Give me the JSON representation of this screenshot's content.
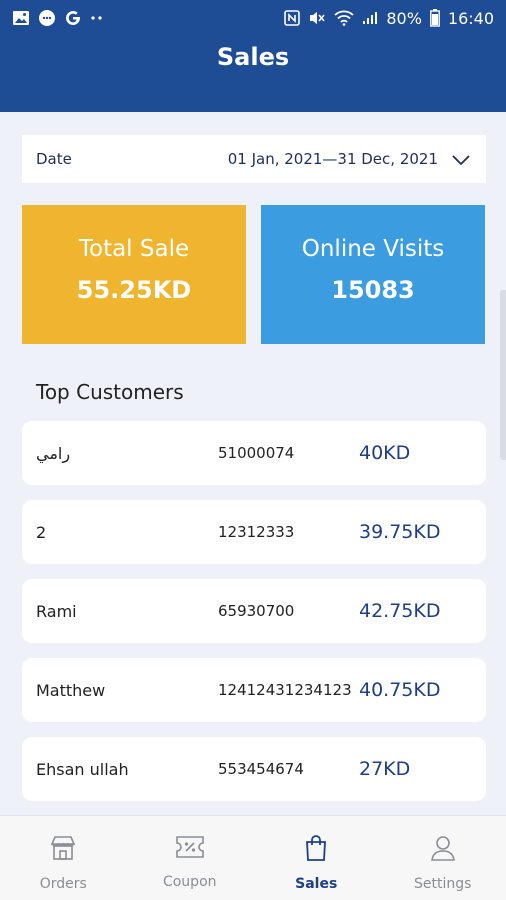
{
  "status": {
    "battery_pct": "80%",
    "time": "16:40",
    "left_icons": [
      "image-icon",
      "chat-bubble-icon",
      "google-icon",
      "more-dots-icon"
    ],
    "right_icons": [
      "nfc-icon",
      "mute-icon",
      "wifi-icon",
      "signal-icon",
      "battery-icon"
    ]
  },
  "header": {
    "title": "Sales"
  },
  "date_filter": {
    "label": "Date",
    "range": "01 Jan, 2021—31 Dec, 2021"
  },
  "stats": {
    "total_sale": {
      "label": "Total Sale",
      "value": "55.25KD",
      "color": "#f0b52f"
    },
    "online_visits": {
      "label": "Online Visits",
      "value": "15083",
      "color": "#3b9de0"
    }
  },
  "top_customers": {
    "title": "Top Customers",
    "rows": [
      {
        "name": "رامي",
        "phone": "51000074",
        "amount": "40KD"
      },
      {
        "name": "2",
        "phone": "12312333",
        "amount": "39.75KD"
      },
      {
        "name": "Rami",
        "phone": "65930700",
        "amount": "42.75KD"
      },
      {
        "name": "Matthew",
        "phone": "12412431234123",
        "amount": "40.75KD"
      },
      {
        "name": "Ehsan ullah",
        "phone": "553454674",
        "amount": "27KD"
      }
    ]
  },
  "nav": {
    "items": [
      {
        "label": "Orders",
        "icon": "store-icon"
      },
      {
        "label": "Coupon",
        "icon": "coupon-icon"
      },
      {
        "label": "Sales",
        "icon": "shopping-bag-icon",
        "active": true
      },
      {
        "label": "Settings",
        "icon": "person-icon"
      }
    ]
  },
  "colors": {
    "header": "#1e4d96",
    "amount": "#1e3f86",
    "background": "#eef1f7"
  }
}
